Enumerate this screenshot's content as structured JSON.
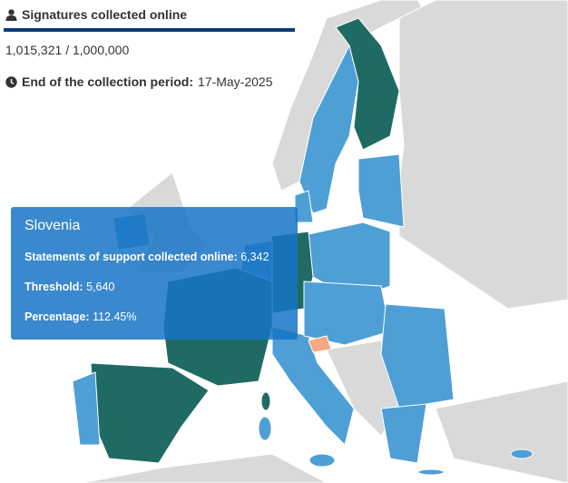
{
  "header": {
    "title": "Signatures collected online"
  },
  "progress": {
    "collected": "1,015,321",
    "separator": "/",
    "target": "1,000,000"
  },
  "period": {
    "label": "End of the collection period:",
    "date": "17-May-2025"
  },
  "tooltip": {
    "country": "Slovenia",
    "rows": [
      {
        "label": "Statements of support collected online:",
        "value": "6,342"
      },
      {
        "label": "Threshold:",
        "value": "5,640"
      },
      {
        "label": "Percentage:",
        "value": "112.45%"
      }
    ]
  }
}
